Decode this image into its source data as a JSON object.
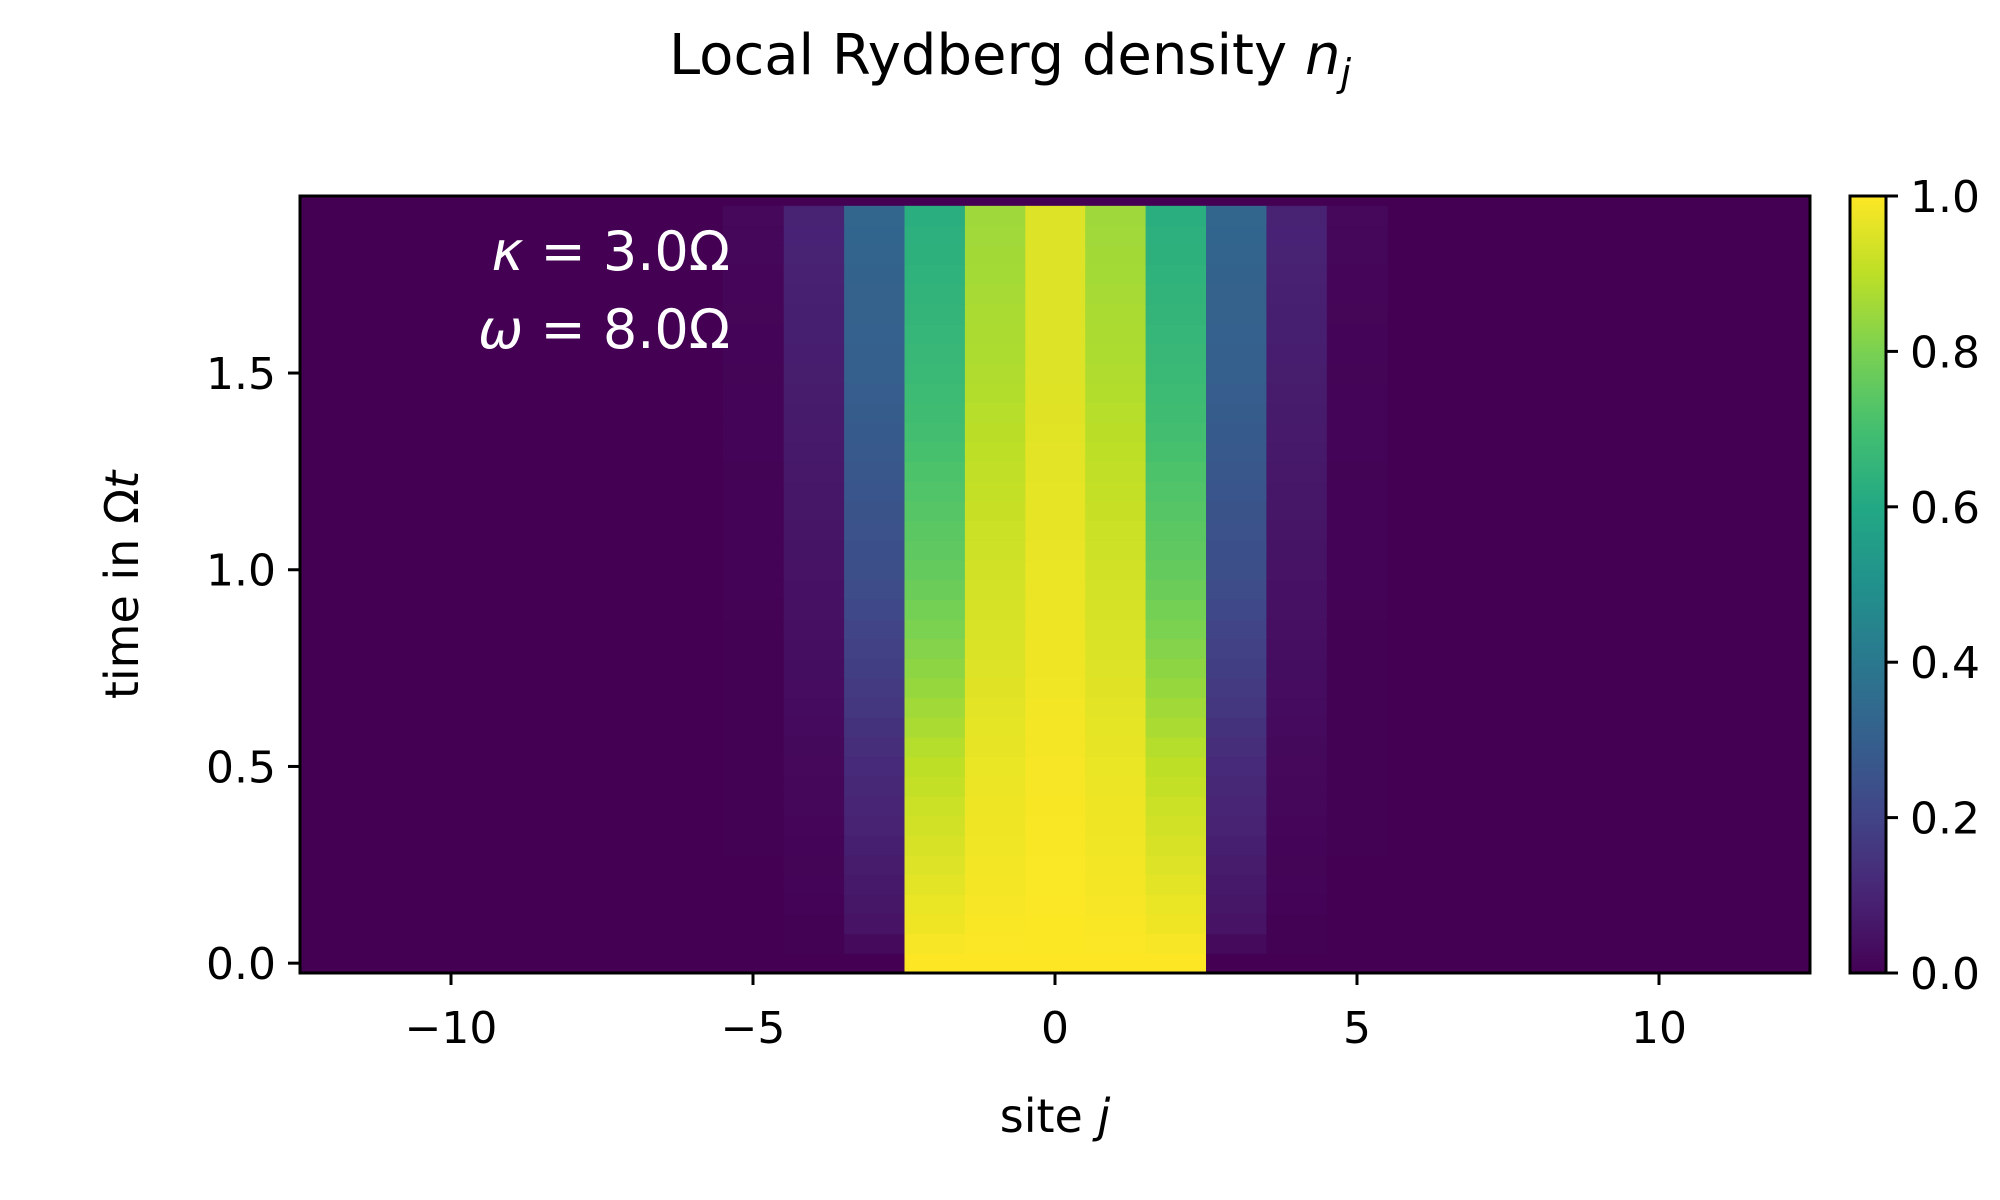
{
  "chart_data": {
    "type": "heatmap",
    "title": "Local Rydberg density",
    "title_symbol": "n",
    "title_subscript": "j",
    "xlabel": "site",
    "xlabel_symbol": "j",
    "ylabel": "time in",
    "ylabel_symbol_upright": "Ω",
    "ylabel_symbol_italic": "t",
    "xlim": [
      -12.5,
      12.5
    ],
    "ylim": [
      -0.025,
      1.95
    ],
    "x_ticks": [
      -10,
      -5,
      0,
      5,
      10
    ],
    "x_tick_labels": [
      "−10",
      "−5",
      "0",
      "5",
      "10"
    ],
    "y_ticks": [
      0.0,
      0.5,
      1.0,
      1.5
    ],
    "y_tick_labels": [
      "0.0",
      "0.5",
      "1.0",
      "1.5"
    ],
    "colormap": "viridis",
    "colorbar": {
      "range": [
        0.0,
        1.0
      ],
      "ticks": [
        0.0,
        0.2,
        0.4,
        0.6,
        0.8,
        1.0
      ],
      "tick_labels": [
        "0.0",
        "0.2",
        "0.4",
        "0.6",
        "0.8",
        "1.0"
      ]
    },
    "annotations": [
      {
        "symbol": "κ",
        "rest": " = 3.0Ω"
      },
      {
        "symbol": "ω",
        "rest": " = 8.0Ω"
      }
    ],
    "time_step": 0.05,
    "time_count": 39,
    "sites": [
      -5,
      -4,
      -3,
      -2,
      -1,
      0,
      1,
      2,
      3,
      4,
      5
    ],
    "density_at_t0": [
      0.0,
      0.0,
      0.0,
      1.0,
      1.0,
      1.0,
      1.0,
      1.0,
      0.0,
      0.0,
      0.0
    ],
    "density_at_t_max": [
      0.02,
      0.1,
      0.33,
      0.62,
      0.85,
      0.95,
      0.85,
      0.62,
      0.33,
      0.1,
      0.02
    ],
    "density_profiles": [
      {
        "site": 0,
        "points": [
          [
            0,
            1.0
          ],
          [
            0.5,
            0.99
          ],
          [
            1.0,
            0.97
          ],
          [
            1.5,
            0.95
          ],
          [
            1.95,
            0.95
          ]
        ]
      },
      {
        "site": -1,
        "points": [
          [
            0,
            1.0
          ],
          [
            0.5,
            0.97
          ],
          [
            1.0,
            0.93
          ],
          [
            1.5,
            0.88
          ],
          [
            1.95,
            0.85
          ]
        ]
      },
      {
        "site": 1,
        "points": [
          [
            0,
            1.0
          ],
          [
            0.5,
            0.97
          ],
          [
            1.0,
            0.93
          ],
          [
            1.5,
            0.88
          ],
          [
            1.95,
            0.85
          ]
        ]
      },
      {
        "site": -2,
        "points": [
          [
            0,
            1.0
          ],
          [
            0.5,
            0.9
          ],
          [
            1.0,
            0.76
          ],
          [
            1.5,
            0.67
          ],
          [
            1.95,
            0.62
          ]
        ]
      },
      {
        "site": 2,
        "points": [
          [
            0,
            1.0
          ],
          [
            0.5,
            0.9
          ],
          [
            1.0,
            0.76
          ],
          [
            1.5,
            0.67
          ],
          [
            1.95,
            0.62
          ]
        ]
      },
      {
        "site": -3,
        "points": [
          [
            0,
            0.0
          ],
          [
            0.1,
            0.05
          ],
          [
            0.5,
            0.12
          ],
          [
            1.0,
            0.24
          ],
          [
            1.5,
            0.3
          ],
          [
            1.95,
            0.33
          ]
        ]
      },
      {
        "site": 3,
        "points": [
          [
            0,
            0.0
          ],
          [
            0.1,
            0.05
          ],
          [
            0.5,
            0.12
          ],
          [
            1.0,
            0.24
          ],
          [
            1.5,
            0.3
          ],
          [
            1.95,
            0.33
          ]
        ]
      },
      {
        "site": -4,
        "points": [
          [
            0,
            0.0
          ],
          [
            0.5,
            0.02
          ],
          [
            1.0,
            0.05
          ],
          [
            1.5,
            0.08
          ],
          [
            1.95,
            0.1
          ]
        ]
      },
      {
        "site": 4,
        "points": [
          [
            0,
            0.0
          ],
          [
            0.5,
            0.02
          ],
          [
            1.0,
            0.05
          ],
          [
            1.5,
            0.08
          ],
          [
            1.95,
            0.1
          ]
        ]
      },
      {
        "site": -5,
        "points": [
          [
            0,
            0.0
          ],
          [
            1.0,
            0.005
          ],
          [
            1.5,
            0.01
          ],
          [
            1.95,
            0.02
          ]
        ]
      },
      {
        "site": 5,
        "points": [
          [
            0,
            0.0
          ],
          [
            1.0,
            0.005
          ],
          [
            1.5,
            0.01
          ],
          [
            1.95,
            0.02
          ]
        ]
      }
    ]
  }
}
